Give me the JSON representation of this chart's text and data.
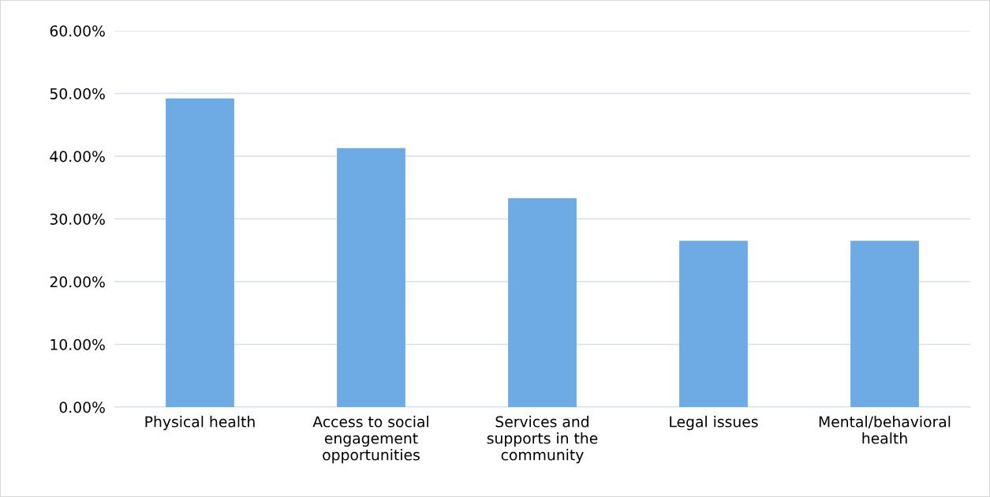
{
  "chart_data": {
    "type": "bar",
    "categories": [
      "Physical health",
      "Access to social\nengagement\nopportunities",
      "Services and\nsupports in the\ncommunity",
      "Legal issues",
      "Mental/behavioral\nhealth"
    ],
    "values": [
      49.2,
      41.3,
      33.3,
      26.5,
      26.5
    ],
    "color": "#6eaae3",
    "ylim": [
      0,
      60
    ],
    "yticks": [
      {
        "value": 0,
        "label": "0.00%"
      },
      {
        "value": 10,
        "label": "10.00%"
      },
      {
        "value": 20,
        "label": "20.00%"
      },
      {
        "value": 30,
        "label": "30.00%"
      },
      {
        "value": 40,
        "label": "40.00%"
      },
      {
        "value": 50,
        "label": "50.00%"
      },
      {
        "value": 60,
        "label": "60.00%"
      }
    ],
    "grid": "y"
  }
}
